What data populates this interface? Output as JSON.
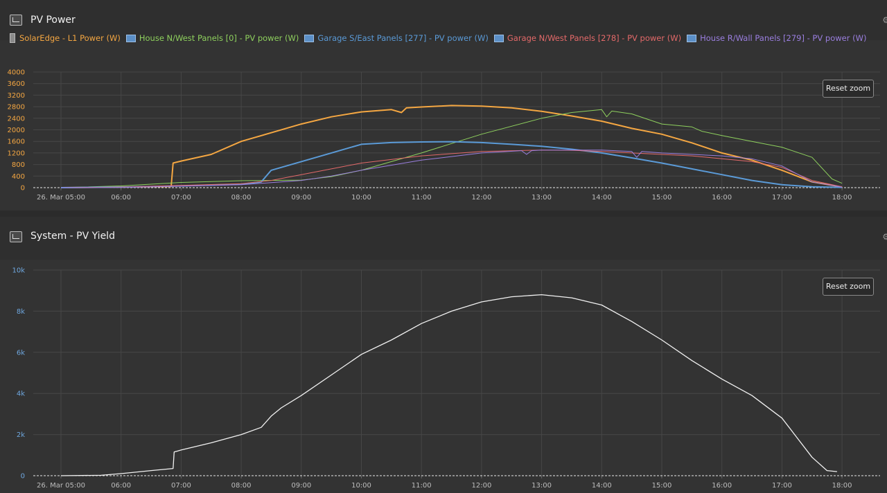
{
  "panels": [
    {
      "title": "PV Power",
      "icon": "line-chart-icon",
      "reset_label": "Reset zoom",
      "legend": [
        {
          "label": "SolarEdge - L1 Power (W)",
          "color": "#f5a742",
          "icon": "meter-icon"
        },
        {
          "label": "House N/West Panels [0] - PV power (W)",
          "color": "#8fd15e",
          "icon": "panel-icon"
        },
        {
          "label": "Garage S/East Panels [277] - PV power (W)",
          "color": "#5b9bd8",
          "icon": "panel-icon"
        },
        {
          "label": "Garage N/West Panels [278] - PV power (W)",
          "color": "#e56a6a",
          "icon": "panel-icon"
        },
        {
          "label": "House R/Wall Panels [279] - PV power (W)",
          "color": "#9b7fe0",
          "icon": "panel-icon"
        }
      ]
    },
    {
      "title": "System - PV Yield",
      "icon": "system-icon",
      "reset_label": "Reset zoom"
    }
  ],
  "chart_data": [
    {
      "type": "line",
      "title": "PV Power",
      "xlabel": "",
      "ylabel": "",
      "xlim": [
        "05:00",
        "18:40"
      ],
      "ylim": [
        0,
        4000
      ],
      "y_ticks": [
        "0",
        "400",
        "800",
        "1200",
        "1600",
        "2000",
        "2400",
        "2800",
        "3200",
        "3600",
        "4000"
      ],
      "x_ticks": [
        "26. Mar 05:00",
        "06:00",
        "07:00",
        "08:00",
        "09:00",
        "10:00",
        "11:00",
        "12:00",
        "13:00",
        "14:00",
        "15:00",
        "16:00",
        "17:00",
        "18:00"
      ],
      "grid": true,
      "legend_position": "top",
      "series": [
        {
          "name": "SolarEdge - L1 Power (W)",
          "color": "#f5a742",
          "x": [
            "05:00",
            "06:00",
            "06:50",
            "06:52",
            "07:00",
            "07:30",
            "08:00",
            "08:30",
            "09:00",
            "09:30",
            "10:00",
            "10:30",
            "10:40",
            "10:45",
            "11:00",
            "11:30",
            "12:00",
            "12:30",
            "13:00",
            "13:30",
            "14:00",
            "14:30",
            "15:00",
            "15:30",
            "16:00",
            "16:30",
            "17:00",
            "17:30",
            "18:00"
          ],
          "values": [
            0,
            20,
            40,
            850,
            920,
            1150,
            1600,
            1900,
            2200,
            2450,
            2620,
            2700,
            2600,
            2760,
            2790,
            2840,
            2820,
            2760,
            2640,
            2480,
            2300,
            2050,
            1850,
            1550,
            1200,
            950,
            600,
            200,
            20
          ]
        },
        {
          "name": "House N/West Panels [0] - PV power (W)",
          "color": "#8fd15e",
          "x": [
            "05:00",
            "06:00",
            "07:00",
            "08:00",
            "09:00",
            "09:30",
            "10:00",
            "11:00",
            "12:00",
            "13:00",
            "13:30",
            "14:00",
            "14:05",
            "14:10",
            "14:30",
            "15:00",
            "15:30",
            "15:40",
            "16:00",
            "16:30",
            "17:00",
            "17:30",
            "17:50",
            "18:00"
          ],
          "values": [
            0,
            60,
            180,
            240,
            260,
            380,
            600,
            1200,
            1850,
            2400,
            2600,
            2700,
            2450,
            2650,
            2550,
            2200,
            2100,
            1950,
            1800,
            1600,
            1400,
            1050,
            300,
            150
          ]
        },
        {
          "name": "Garage S/East Panels [277] - PV power (W)",
          "color": "#5b9bd8",
          "x": [
            "05:00",
            "06:00",
            "07:00",
            "08:00",
            "08:20",
            "08:30",
            "09:00",
            "09:30",
            "10:00",
            "10:30",
            "11:00",
            "11:30",
            "12:00",
            "12:30",
            "13:00",
            "13:30",
            "14:00",
            "14:30",
            "15:00",
            "15:30",
            "16:00",
            "16:30",
            "17:00",
            "17:30",
            "18:00"
          ],
          "values": [
            0,
            20,
            60,
            120,
            200,
            600,
            900,
            1200,
            1500,
            1560,
            1580,
            1590,
            1560,
            1500,
            1430,
            1330,
            1200,
            1030,
            850,
            650,
            450,
            250,
            100,
            30,
            10
          ]
        },
        {
          "name": "Garage N/West Panels [278] - PV power (W)",
          "color": "#e56a6a",
          "x": [
            "05:00",
            "06:00",
            "07:00",
            "08:00",
            "08:30",
            "09:00",
            "09:30",
            "10:00",
            "11:00",
            "12:00",
            "13:00",
            "13:30",
            "14:00",
            "15:00",
            "15:30",
            "16:00",
            "16:30",
            "17:00",
            "17:30",
            "18:00"
          ],
          "values": [
            0,
            20,
            80,
            140,
            250,
            450,
            650,
            850,
            1100,
            1250,
            1300,
            1290,
            1250,
            1150,
            1100,
            1000,
            900,
            700,
            250,
            30
          ]
        },
        {
          "name": "House R/Wall Panels [279] - PV power (W)",
          "color": "#9b7fe0",
          "x": [
            "05:00",
            "06:00",
            "07:00",
            "08:00",
            "09:00",
            "09:30",
            "10:00",
            "11:00",
            "12:00",
            "12:40",
            "12:45",
            "12:50",
            "13:00",
            "14:00",
            "14:30",
            "14:35",
            "14:40",
            "15:00",
            "16:00",
            "16:30",
            "17:00",
            "17:30",
            "18:00"
          ],
          "values": [
            0,
            10,
            50,
            100,
            250,
            400,
            600,
            950,
            1200,
            1280,
            1150,
            1280,
            1300,
            1300,
            1250,
            1050,
            1250,
            1200,
            1100,
            1000,
            750,
            200,
            20
          ]
        }
      ]
    },
    {
      "type": "line",
      "title": "System - PV Yield",
      "xlabel": "",
      "ylabel": "",
      "xlim": [
        "05:00",
        "18:40"
      ],
      "ylim": [
        0,
        10000
      ],
      "y_ticks": [
        "0",
        "2k",
        "4k",
        "6k",
        "8k",
        "10k"
      ],
      "x_ticks": [
        "26. Mar 05:00",
        "06:00",
        "07:00",
        "08:00",
        "09:00",
        "10:00",
        "11:00",
        "12:00",
        "13:00",
        "14:00",
        "15:00",
        "16:00",
        "17:00",
        "18:00"
      ],
      "grid": true,
      "series": [
        {
          "name": "",
          "color": "#f2f2f2",
          "x": [
            "05:00",
            "05:40",
            "06:00",
            "06:30",
            "06:52",
            "06:53",
            "07:00",
            "07:30",
            "08:00",
            "08:20",
            "08:30",
            "08:40",
            "09:00",
            "09:30",
            "10:00",
            "10:30",
            "11:00",
            "11:30",
            "12:00",
            "12:30",
            "12:45",
            "13:00",
            "13:30",
            "14:00",
            "14:30",
            "15:00",
            "15:30",
            "16:00",
            "16:30",
            "17:00",
            "17:30",
            "17:45",
            "17:55"
          ],
          "values": [
            0,
            20,
            100,
            250,
            350,
            1150,
            1250,
            1600,
            2000,
            2350,
            2900,
            3300,
            3900,
            4900,
            5900,
            6600,
            7400,
            8000,
            8450,
            8700,
            8750,
            8800,
            8650,
            8300,
            7500,
            6600,
            5600,
            4700,
            3900,
            2800,
            900,
            250,
            200
          ]
        }
      ]
    }
  ]
}
